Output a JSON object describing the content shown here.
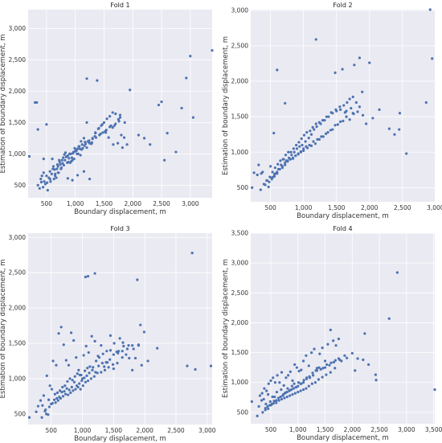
{
  "colors": {
    "point": "#4c72b0",
    "background": "#eaeaf2",
    "grid": "#ffffff",
    "text": "#333333"
  },
  "chart_data": [
    {
      "type": "scatter",
      "title": "Fold 1",
      "xlabel": "Boundary displacement, m",
      "ylabel": "Estimation of boundary displacement, m",
      "xlim": [
        180,
        3380
      ],
      "ylim": [
        300,
        3300
      ],
      "xticks": [
        500,
        1000,
        1500,
        2000,
        2500,
        3000
      ],
      "xticklabels": [
        "500",
        "1,000",
        "1,500",
        "2,000",
        "2,500",
        "3,000"
      ],
      "yticks": [
        500,
        1000,
        1500,
        2000,
        2500,
        3000
      ],
      "yticklabels": [
        "500",
        "1,000",
        "1,500",
        "2,000",
        "2,500",
        "3,000"
      ],
      "grid": true,
      "x": [
        300,
        330,
        350,
        410,
        450,
        500,
        1200,
        1380,
        1950,
        2500,
        2450,
        2850,
        2930,
        3000,
        3050,
        2600,
        2550,
        2750,
        3380,
        200,
        350,
        420,
        480,
        520,
        560,
        610,
        650,
        700,
        740,
        780,
        820,
        860,
        900,
        940,
        980,
        1020,
        1060,
        1100,
        1150,
        1200,
        1250,
        1300,
        1350,
        1400,
        1450,
        1500,
        1550,
        1600,
        1650,
        1700,
        1750,
        1800,
        1850,
        1900,
        600,
        650,
        700,
        760,
        800,
        840,
        880,
        920,
        960,
        1000,
        1040,
        1080,
        1120,
        1160,
        1220,
        1280,
        1340,
        1420,
        1480,
        1540,
        1620,
        1700,
        1780,
        1860,
        450,
        500,
        560,
        620,
        680,
        720,
        770,
        810,
        850,
        890,
        930,
        970,
        1010,
        1050,
        1090,
        1130,
        1180,
        1240,
        1300,
        1360,
        1440,
        1520,
        1600,
        1680,
        1760,
        400,
        460,
        540,
        590,
        640,
        690,
        730,
        790,
        830,
        870,
        910,
        950,
        990,
        1030,
        1070,
        1110,
        1170,
        1230,
        1290,
        1350,
        1410,
        1470,
        1530,
        1580,
        1660,
        1740,
        1820,
        380,
        440,
        510,
        570,
        630,
        670,
        710,
        750,
        870,
        950,
        1040,
        1150,
        1250,
        1650,
        1780,
        2100,
        2300,
        2200,
        1200
      ],
      "y": [
        1820,
        1820,
        1390,
        550,
        920,
        1470,
        2200,
        2170,
        2020,
        1830,
        1780,
        1730,
        2210,
        2560,
        1580,
        1330,
        900,
        1030,
        2650,
        960,
        500,
        650,
        520,
        420,
        600,
        760,
        680,
        800,
        830,
        850,
        900,
        860,
        1000,
        940,
        920,
        1050,
        1120,
        1200,
        1250,
        1100,
        1170,
        1250,
        1340,
        1400,
        1450,
        1500,
        1560,
        1600,
        1660,
        1640,
        1550,
        1300,
        1260,
        1150,
        920,
        650,
        700,
        780,
        820,
        950,
        870,
        1000,
        1010,
        1040,
        1080,
        1080,
        1150,
        1130,
        1200,
        1160,
        1280,
        1300,
        1340,
        1380,
        1450,
        1480,
        1580,
        1500,
        700,
        650,
        720,
        800,
        760,
        900,
        900,
        990,
        960,
        930,
        880,
        1030,
        1060,
        1000,
        980,
        1090,
        1160,
        1210,
        1240,
        1260,
        1320,
        1360,
        1430,
        1450,
        1520,
        600,
        560,
        620,
        680,
        750,
        830,
        870,
        940,
        1020,
        970,
        860,
        900,
        1090,
        1000,
        1120,
        1070,
        1190,
        1190,
        1180,
        1330,
        1410,
        1470,
        1340,
        1260,
        1150,
        1170,
        1100,
        450,
        470,
        540,
        560,
        600,
        620,
        700,
        760,
        610,
        580,
        660,
        720,
        600,
        1420,
        1620,
        1300,
        1150,
        1250,
        1500
      ]
    },
    {
      "type": "scatter",
      "title": "Fold 2",
      "xlabel": "Boundary displacement, m",
      "ylabel": "Estimation of boundary displacement, m",
      "xlim": [
        200,
        2990
      ],
      "ylim": [
        300,
        3010
      ],
      "xticks": [
        500,
        1000,
        1500,
        2000,
        2500,
        3000
      ],
      "xticklabels": [
        "500",
        "1,000",
        "1,500",
        "2,000",
        "2,500",
        "3,000"
      ],
      "yticks": [
        500,
        1000,
        1500,
        2000,
        2500,
        3000
      ],
      "yticklabels": [
        "500",
        "1,000",
        "1,500",
        "2,000",
        "2,500",
        "3,000"
      ],
      "grid": true,
      "x": [
        1190,
        1480,
        1590,
        1770,
        1850,
        1890,
        2000,
        2460,
        2560,
        2860,
        2950,
        2920,
        2450,
        2300,
        720,
        600,
        550,
        220,
        250,
        320,
        360,
        450,
        500,
        540,
        580,
        620,
        660,
        700,
        740,
        780,
        820,
        860,
        900,
        940,
        980,
        1030,
        1080,
        1120,
        1160,
        1200,
        1260,
        1320,
        1380,
        1440,
        1500,
        1560,
        1610,
        1660,
        1700,
        1750,
        1800,
        1850,
        1900,
        1950,
        2050,
        2150,
        300,
        380,
        440,
        490,
        530,
        570,
        610,
        650,
        690,
        730,
        770,
        810,
        850,
        890,
        930,
        970,
        1010,
        1050,
        1100,
        1140,
        1190,
        1240,
        1290,
        1350,
        1420,
        1490,
        1550,
        1630,
        1720,
        1820,
        400,
        470,
        520,
        560,
        600,
        640,
        680,
        720,
        760,
        800,
        840,
        880,
        920,
        960,
        1000,
        1040,
        1090,
        1150,
        1210,
        1270,
        1340,
        1410,
        1480,
        1560,
        1650,
        1750,
        350,
        420,
        480,
        520,
        560,
        600,
        640,
        680,
        720,
        760,
        800,
        840,
        880,
        920,
        960,
        1000,
        1060,
        1120,
        1180,
        1240,
        1300,
        1370,
        1440,
        1520,
        1600,
        1700,
        1650,
        1760,
        1650,
        2380
      ],
      "y": [
        2590,
        2120,
        2170,
        2230,
        2330,
        1850,
        2260,
        1550,
        980,
        1700,
        2320,
        3010,
        1320,
        1330,
        1690,
        2160,
        1270,
        500,
        710,
        820,
        700,
        600,
        800,
        650,
        700,
        760,
        820,
        900,
        880,
        920,
        960,
        1000,
        1050,
        1080,
        1100,
        1150,
        1200,
        1250,
        1320,
        1360,
        1400,
        1450,
        1500,
        1550,
        1580,
        1600,
        1660,
        1700,
        1750,
        1780,
        1700,
        1640,
        1520,
        1400,
        1480,
        1600,
        680,
        720,
        600,
        650,
        720,
        780,
        830,
        880,
        900,
        960,
        1000,
        1000,
        1050,
        1100,
        1140,
        1190,
        1240,
        1280,
        1300,
        1350,
        1400,
        1420,
        1450,
        1500,
        1560,
        1600,
        1640,
        1560,
        1620,
        1570,
        550,
        510,
        620,
        660,
        700,
        760,
        780,
        820,
        880,
        900,
        920,
        950,
        980,
        1010,
        1050,
        1080,
        1100,
        1150,
        1180,
        1220,
        1260,
        1310,
        1380,
        1430,
        1500,
        1550,
        470,
        540,
        580,
        640,
        690,
        720,
        760,
        800,
        850,
        870,
        900,
        910,
        950,
        970,
        1000,
        1020,
        1060,
        1090,
        1120,
        1180,
        1220,
        1280,
        1320,
        1390,
        1440,
        1460,
        1500,
        1540,
        1580,
        1250
      ]
    },
    {
      "type": "scatter",
      "title": "Fold 3",
      "xlabel": "Boundary displacement, m",
      "ylabel": "Estimation of boundary displacement, m",
      "xlim": [
        130,
        3080
      ],
      "ylim": [
        350,
        3060
      ],
      "xticks": [
        500,
        1000,
        1500,
        2000,
        2500,
        3000
      ],
      "xticklabels": [
        "500",
        "1,000",
        "1,500",
        "2,000",
        "2,500",
        "3,000"
      ],
      "yticks": [
        500,
        1000,
        1500,
        2000,
        2500,
        3000
      ],
      "yticklabels": [
        "500",
        "1,000",
        "1,500",
        "2,000",
        "2,500",
        "3,000"
      ],
      "grid": true,
      "x": [
        1050,
        1090,
        1200,
        1880,
        2760,
        2680,
        3060,
        2810,
        1930,
        1990,
        150,
        260,
        330,
        380,
        430,
        480,
        530,
        580,
        620,
        660,
        700,
        740,
        780,
        820,
        860,
        900,
        940,
        980,
        1020,
        1060,
        1100,
        1150,
        1200,
        1250,
        1300,
        1350,
        1400,
        1450,
        1500,
        1550,
        1600,
        1650,
        1700,
        1750,
        1800,
        1850,
        1900,
        1950,
        2050,
        2200,
        290,
        360,
        410,
        460,
        510,
        560,
        600,
        640,
        680,
        720,
        760,
        800,
        840,
        880,
        920,
        960,
        1000,
        1040,
        1080,
        1120,
        1170,
        1220,
        1270,
        1330,
        1390,
        1450,
        1510,
        1580,
        1660,
        1740,
        1820,
        400,
        450,
        500,
        550,
        590,
        630,
        670,
        710,
        750,
        790,
        830,
        870,
        910,
        950,
        990,
        1030,
        1070,
        1110,
        1160,
        1210,
        1260,
        1320,
        1380,
        1440,
        1500,
        1570,
        1640,
        1720,
        1800,
        1900,
        350,
        420,
        470,
        520,
        570,
        610,
        650,
        690,
        730,
        770,
        810,
        850,
        890,
        930,
        970,
        1010,
        1050,
        1090,
        1140,
        1190,
        1240,
        1300,
        1360,
        1420,
        1490,
        1560,
        1640
      ],
      "y": [
        2440,
        2450,
        2490,
        2400,
        2780,
        1180,
        1180,
        1130,
        1760,
        1660,
        450,
        530,
        690,
        760,
        1040,
        900,
        1250,
        1190,
        1640,
        1730,
        1480,
        1260,
        1190,
        1650,
        1540,
        1300,
        1120,
        1050,
        1330,
        1460,
        1370,
        1600,
        1530,
        1320,
        1470,
        1170,
        1230,
        1610,
        1140,
        1380,
        1570,
        1510,
        1340,
        1290,
        1120,
        1290,
        1470,
        1190,
        1250,
        1430,
        610,
        620,
        560,
        700,
        850,
        780,
        800,
        830,
        880,
        900,
        960,
        1000,
        980,
        1030,
        1070,
        1050,
        1000,
        1110,
        1150,
        1170,
        1160,
        1250,
        1300,
        1350,
        1390,
        1400,
        1500,
        1390,
        1460,
        1470,
        1420,
        540,
        490,
        640,
        700,
        720,
        740,
        810,
        820,
        860,
        840,
        880,
        950,
        900,
        930,
        970,
        1010,
        1040,
        1080,
        1120,
        1090,
        1180,
        1220,
        1230,
        1270,
        1340,
        1360,
        1390,
        1420,
        1470,
        1480,
        450,
        500,
        600,
        650,
        660,
        690,
        720,
        750,
        780,
        770,
        800,
        830,
        850,
        880,
        850,
        900,
        950,
        970,
        1000,
        1030,
        1080,
        1090,
        1120,
        1160,
        1200,
        1220,
        1300
      ]
    },
    {
      "type": "scatter",
      "title": "Fold 4",
      "xlabel": "Boundary displacement, m",
      "ylabel": "Estimation of boundary displacement, m",
      "xlim": [
        130,
        3520
      ],
      "ylim": [
        310,
        3500
      ],
      "xticks": [
        500,
        1000,
        1500,
        2000,
        2500,
        3000,
        3500
      ],
      "xticklabels": [
        "500",
        "1,000",
        "1,500",
        "2,000",
        "2,500",
        "3,000",
        "3,500"
      ],
      "yticks": [
        500,
        1000,
        1500,
        2000,
        2500,
        3000,
        3500
      ],
      "yticklabels": [
        "500",
        "1,000",
        "1,500",
        "2,000",
        "2,500",
        "3,000",
        "3,500"
      ],
      "grid": true,
      "x": [
        2830,
        2680,
        2230,
        2430,
        2440,
        3520,
        150,
        250,
        300,
        340,
        380,
        420,
        460,
        500,
        540,
        580,
        620,
        660,
        700,
        740,
        780,
        820,
        860,
        900,
        940,
        980,
        1020,
        1060,
        1100,
        1150,
        1200,
        1250,
        1300,
        1350,
        1400,
        1450,
        1500,
        1550,
        1600,
        1650,
        1700,
        1750,
        1800,
        1900,
        2000,
        2100,
        2200,
        2300,
        280,
        330,
        370,
        410,
        450,
        490,
        530,
        570,
        610,
        650,
        690,
        730,
        770,
        810,
        850,
        890,
        930,
        970,
        1010,
        1060,
        1110,
        1160,
        1210,
        1270,
        1330,
        1390,
        1460,
        1530,
        1610,
        1690,
        1770,
        1860,
        400,
        440,
        480,
        520,
        560,
        600,
        640,
        680,
        720,
        760,
        800,
        840,
        880,
        920,
        960,
        1000,
        1050,
        1100,
        1160,
        1220,
        1280,
        1350,
        1420,
        1500,
        1580,
        1660,
        1750,
        350,
        400,
        450,
        500,
        550,
        600,
        650,
        700,
        750,
        800,
        850,
        900,
        950,
        1000,
        1050,
        1100,
        1150,
        1200,
        1260,
        1320,
        1380,
        1450,
        1520,
        1600,
        1680,
        2050
      ],
      "y": [
        2840,
        2070,
        1820,
        1130,
        1040,
        880,
        680,
        440,
        780,
        820,
        900,
        860,
        980,
        1030,
        1080,
        1000,
        1120,
        1000,
        1170,
        950,
        1080,
        1120,
        1180,
        1030,
        1300,
        1250,
        1190,
        1210,
        1360,
        1450,
        1280,
        1500,
        1560,
        1240,
        1480,
        1580,
        1360,
        1640,
        1880,
        1700,
        1620,
        1730,
        1360,
        1410,
        1490,
        1400,
        1380,
        1300,
        600,
        700,
        720,
        640,
        800,
        680,
        760,
        760,
        840,
        700,
        880,
        800,
        830,
        900,
        870,
        940,
        980,
        920,
        1000,
        980,
        1040,
        1080,
        1100,
        1160,
        1200,
        1250,
        1240,
        1300,
        1330,
        1370,
        1380,
        1450,
        570,
        600,
        620,
        640,
        690,
        700,
        740,
        760,
        780,
        820,
        840,
        860,
        880,
        900,
        920,
        940,
        980,
        1000,
        1060,
        1080,
        1120,
        1200,
        1220,
        1250,
        1290,
        1340,
        1400,
        500,
        540,
        560,
        620,
        650,
        660,
        700,
        720,
        740,
        760,
        780,
        800,
        820,
        840,
        860,
        880,
        900,
        940,
        980,
        1000,
        1050,
        1090,
        1130,
        1170,
        1240,
        1200
      ]
    }
  ]
}
